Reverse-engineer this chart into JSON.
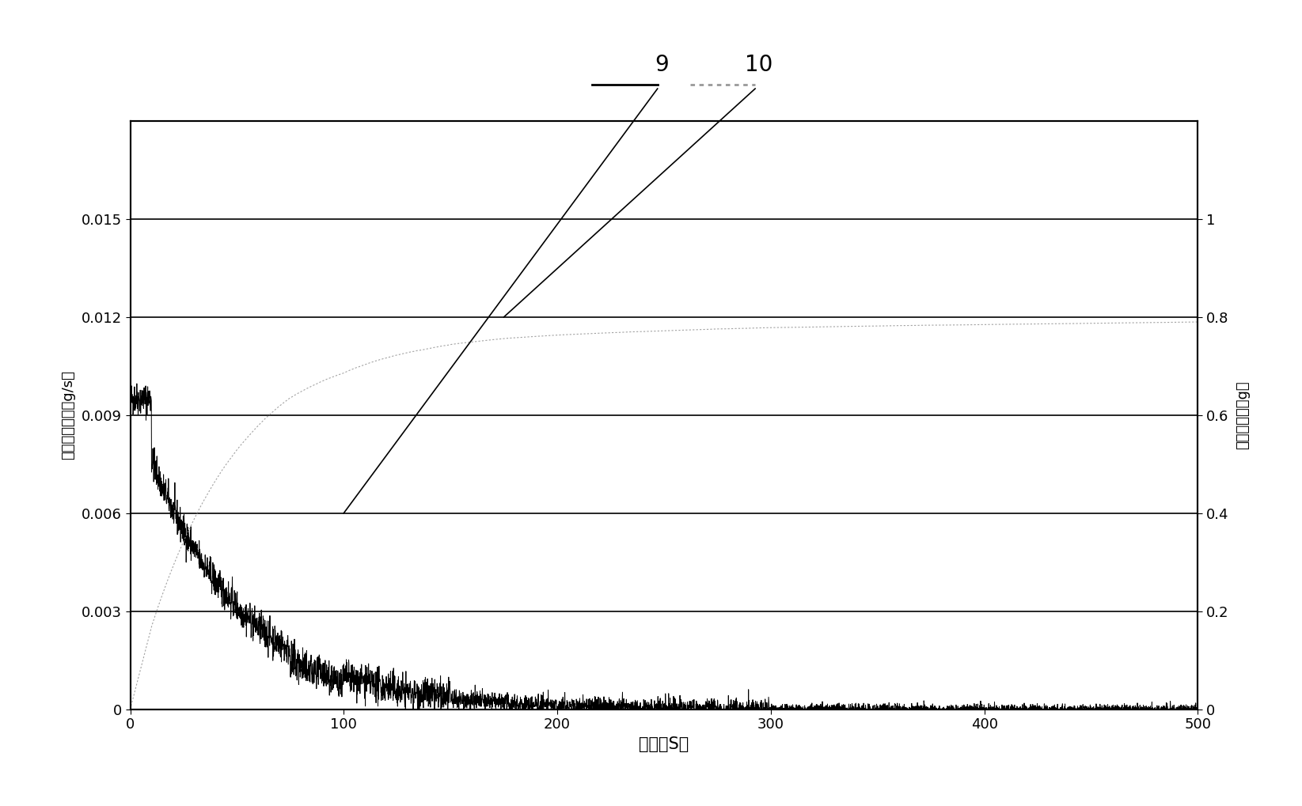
{
  "xlabel": "时间（S）",
  "ylabel_left": "氨气吸附速率（g/s）",
  "ylabel_right": "氨气吸附量（g）",
  "xlim": [
    0,
    500
  ],
  "ylim_left": [
    0,
    0.018
  ],
  "ylim_right": [
    0,
    1.2
  ],
  "yticks_left": [
    0,
    0.003,
    0.006,
    0.009,
    0.012,
    0.015
  ],
  "yticks_right": [
    0,
    0.2,
    0.4,
    0.6,
    0.8,
    1.0
  ],
  "xticks": [
    0,
    100,
    200,
    300,
    400,
    500
  ],
  "label9": "9",
  "label10": "10",
  "line9_color": "#000000",
  "line10_color": "#999999",
  "background_color": "#ffffff"
}
